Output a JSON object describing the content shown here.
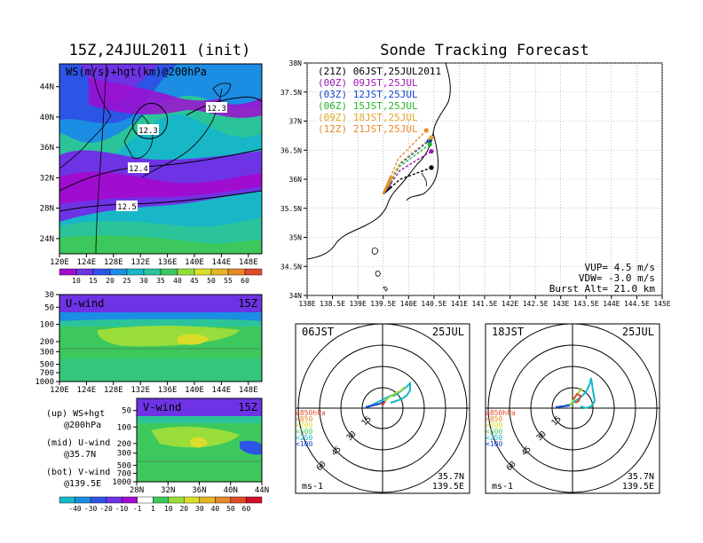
{
  "left_title": "15Z,24JUL2011 (init)",
  "right_title": "Sonde Tracking Forecast",
  "colors": {
    "wind_shades": [
      "#ffffff",
      "#a00dcf",
      "#6e33e5",
      "#2c55e6",
      "#1b8de3",
      "#17b7c8",
      "#2bc49a",
      "#3cc85c",
      "#98dd3c",
      "#dcdc2b",
      "#e4b526",
      "#e5872a",
      "#e04a2a",
      "#d10f2a"
    ],
    "track_colors": [
      "#000000",
      "#9b17b3",
      "#1844d6",
      "#27b42c",
      "#e1a52a",
      "#e6892b"
    ]
  },
  "chart_data": [
    {
      "type": "heatmap",
      "panel": "map-ws-hgt",
      "label": "WS(m/s)+hgt(km)@200hPa",
      "x_ticks": [
        "120E",
        "124E",
        "128E",
        "132E",
        "136E",
        "140E",
        "144E",
        "148E"
      ],
      "y_ticks": [
        "24N",
        "28N",
        "32N",
        "36N",
        "40N",
        "44N"
      ],
      "xlim": [
        120,
        150
      ],
      "ylim": [
        22,
        47
      ],
      "contour_labels": [
        "12.3",
        "12.3",
        "12.4",
        "12.5"
      ],
      "colorbar": [
        "10",
        "15",
        "20",
        "25",
        "30",
        "35",
        "40",
        "45",
        "50",
        "55",
        "60"
      ]
    },
    {
      "type": "heatmap",
      "panel": "u-wind",
      "label": "U-wind",
      "time": "15Z",
      "x_ticks": [
        "120E",
        "124E",
        "128E",
        "132E",
        "136E",
        "140E",
        "144E",
        "148E"
      ],
      "y_ticks": [
        "30",
        "50",
        "100",
        "200",
        "300",
        "500",
        "700",
        "1000"
      ]
    },
    {
      "type": "heatmap",
      "panel": "v-wind",
      "label": "V-wind",
      "time": "15Z",
      "x_ticks": [
        "28N",
        "32N",
        "36N",
        "40N",
        "44N"
      ],
      "y_ticks": [
        "200",
        "300",
        "500",
        "700",
        "1000"
      ],
      "y_ticks_top": [
        "50",
        "100"
      ],
      "colorbar": [
        "-40",
        "-30",
        "-20",
        "-10",
        "-1",
        "1",
        "10",
        "20",
        "30",
        "40",
        "50",
        "60"
      ]
    },
    {
      "type": "line",
      "panel": "sonde-track",
      "x_ticks": [
        "138E",
        "138.5E",
        "139E",
        "139.5E",
        "140E",
        "140.5E",
        "141E",
        "141.5E",
        "142E",
        "142.5E",
        "143E",
        "143.5E",
        "144E",
        "144.5E",
        "145E"
      ],
      "y_ticks": [
        "34N",
        "34.5N",
        "35N",
        "35.5N",
        "36N",
        "36.5N",
        "37N",
        "37.5N",
        "38N"
      ],
      "xlim": [
        138,
        145
      ],
      "ylim": [
        34,
        38
      ],
      "launch": [
        139.5,
        35.75
      ],
      "series": [
        {
          "name": "(21Z) 06JST,25JUL2011",
          "end": [
            140.45,
            36.2
          ]
        },
        {
          "name": "(00Z) 09JST,25JUL",
          "end": [
            140.45,
            36.48
          ]
        },
        {
          "name": "(03Z) 12JST,25JUL",
          "end": [
            140.4,
            36.66
          ]
        },
        {
          "name": "(06Z) 15JST,25JUL",
          "end": [
            140.42,
            36.6
          ]
        },
        {
          "name": "(09Z) 18JST,25JUL",
          "end": [
            140.45,
            36.72
          ]
        },
        {
          "name": "(12Z) 21JST,25JUL",
          "end": [
            140.35,
            36.84
          ]
        }
      ],
      "info": [
        "VUP= 4.5 m/s",
        "VDW= -3.0 m/s",
        "Burst Alt= 21.0 km"
      ]
    }
  ],
  "hodographs": [
    {
      "time": "06JST",
      "date": "25JUL",
      "lat": "35.7N",
      "lon": "139.5E",
      "unit": "ms-1",
      "rings": [
        "15",
        "30",
        "45",
        "60"
      ],
      "levels": [
        "≥850hPa",
        "<850",
        "<700",
        "<500",
        "<250",
        "<100"
      ]
    },
    {
      "time": "18JST",
      "date": "25JUL",
      "lat": "35.7N",
      "lon": "139.5E",
      "unit": "ms-1",
      "rings": [
        "15",
        "30",
        "45",
        "60"
      ],
      "levels": [
        "≥850hPa",
        "<850",
        "<700",
        "<500",
        "<250",
        "<100"
      ]
    }
  ],
  "notes": {
    "line1": "(up) WS+hgt",
    "line2": "@200hPa",
    "line3": "(mid) U-wind",
    "line4": "@35.7N",
    "line5": "(bot) V-wind",
    "line6": "@139.5E"
  }
}
